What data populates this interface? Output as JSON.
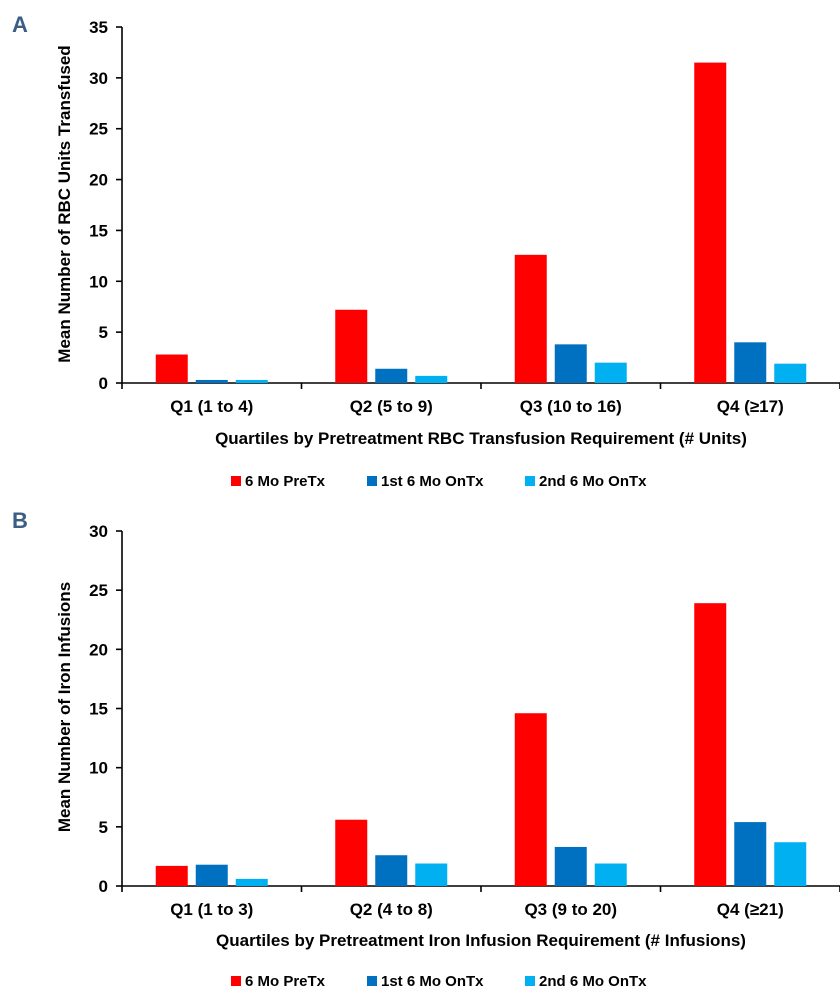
{
  "colors": {
    "series_1": "#ff0000",
    "series_2": "#0070c0",
    "series_3": "#00b0f0",
    "axis": "#000000",
    "panel_letter": "#3b5e82"
  },
  "chart_data": [
    {
      "panel": "A",
      "type": "bar",
      "categories": [
        "Q1 (1 to 4)",
        "Q2 (5 to 9)",
        "Q3 (10 to 16)",
        "Q4 (≥17)"
      ],
      "series": [
        {
          "name": "6 Mo PreTx",
          "values": [
            2.8,
            7.2,
            12.6,
            31.5
          ]
        },
        {
          "name": "1st 6 Mo OnTx",
          "values": [
            0.3,
            1.4,
            3.8,
            4.0
          ]
        },
        {
          "name": "2nd 6 Mo OnTx",
          "values": [
            0.3,
            0.7,
            2.0,
            1.9
          ]
        }
      ],
      "xlabel": "Quartiles by Pretreatment RBC Transfusion Requirement (# Units)",
      "ylabel": "Mean Number of RBC Units Transfused",
      "ylim": [
        0,
        35
      ],
      "yticks": [
        0,
        5,
        10,
        15,
        20,
        25,
        30,
        35
      ],
      "grid": false,
      "legend": "bottom"
    },
    {
      "panel": "B",
      "type": "bar",
      "categories": [
        "Q1 (1 to 3)",
        "Q2 (4 to 8)",
        "Q3 (9 to 20)",
        "Q4 (≥21)"
      ],
      "series": [
        {
          "name": "6 Mo PreTx",
          "values": [
            1.7,
            5.6,
            14.6,
            23.9
          ]
        },
        {
          "name": "1st 6 Mo OnTx",
          "values": [
            1.8,
            2.6,
            3.3,
            5.4
          ]
        },
        {
          "name": "2nd 6 Mo OnTx",
          "values": [
            0.6,
            1.9,
            1.9,
            3.7
          ]
        }
      ],
      "xlabel": "Quartiles by Pretreatment Iron Infusion Requirement (# Infusions)",
      "ylabel": "Mean Number of Iron Infusions",
      "ylim": [
        0,
        30
      ],
      "yticks": [
        0,
        5,
        10,
        15,
        20,
        25,
        30
      ],
      "grid": false,
      "legend": "bottom"
    }
  ]
}
